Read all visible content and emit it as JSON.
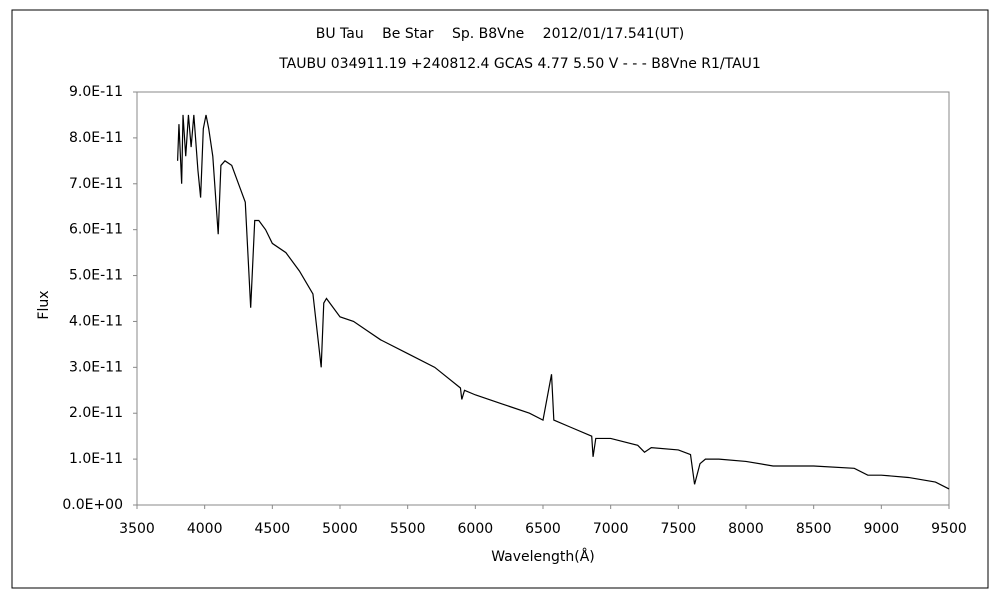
{
  "chart_data": {
    "type": "line",
    "title": "BU Tau　 Be Star　 Sp. B8Vne　 2012/01/17.541(UT)",
    "subtitle": "TAUBU 034911.19 +240812.4 GCAS 4.77 5.50 V - - - B8Vne R1/TAU1",
    "x_label": "Wavelength(Å)",
    "y_label": "Flux",
    "x": [
      3800,
      3810,
      3830,
      3840,
      3860,
      3880,
      3900,
      3920,
      3950,
      3970,
      3990,
      4010,
      4030,
      4060,
      4100,
      4120,
      4150,
      4200,
      4250,
      4300,
      4340,
      4370,
      4400,
      4450,
      4500,
      4600,
      4700,
      4800,
      4861,
      4880,
      4900,
      5000,
      5100,
      5200,
      5300,
      5500,
      5700,
      5890,
      5900,
      5920,
      6000,
      6200,
      6400,
      6500,
      6563,
      6580,
      6700,
      6860,
      6870,
      6890,
      7000,
      7200,
      7250,
      7300,
      7500,
      7590,
      7620,
      7660,
      7700,
      7800,
      8000,
      8200,
      8500,
      8800,
      8900,
      9000,
      9200,
      9400,
      9500
    ],
    "series": [
      {
        "color": "#000000",
        "values": [
          7.5e-11,
          8.3e-11,
          7e-11,
          8.5e-11,
          7.6e-11,
          8.5e-11,
          7.8e-11,
          8.5e-11,
          7.3e-11,
          6.7e-11,
          8.2e-11,
          8.5e-11,
          8.2e-11,
          7.6e-11,
          5.9e-11,
          7.4e-11,
          7.5e-11,
          7.4e-11,
          7e-11,
          6.6e-11,
          4.3e-11,
          6.2e-11,
          6.2e-11,
          6e-11,
          5.7e-11,
          5.5e-11,
          5.1e-11,
          4.6e-11,
          3e-11,
          4.4e-11,
          4.5e-11,
          4.1e-11,
          4e-11,
          3.8e-11,
          3.6e-11,
          3.3e-11,
          3e-11,
          2.55e-11,
          2.3e-11,
          2.5e-11,
          2.4e-11,
          2.2e-11,
          2e-11,
          1.85e-11,
          2.85e-11,
          1.85e-11,
          1.7e-11,
          1.5e-11,
          1.05e-11,
          1.45e-11,
          1.45e-11,
          1.3e-11,
          1.15e-11,
          1.25e-11,
          1.2e-11,
          1.1e-11,
          4.5e-12,
          9e-12,
          1e-11,
          1e-11,
          9.5e-12,
          8.5e-12,
          8.5e-12,
          8e-12,
          6.5e-12,
          6.5e-12,
          6e-12,
          5e-12,
          3.5e-12
        ]
      }
    ],
    "xlim": [
      3500,
      9500
    ],
    "xticks": [
      3500,
      4000,
      4500,
      5000,
      5500,
      6000,
      6500,
      7000,
      7500,
      8000,
      8500,
      9000,
      9500
    ],
    "ylim": [
      0,
      9e-11
    ],
    "yticks": [
      {
        "value": 0,
        "label": "0.0E+00"
      },
      {
        "value": 1e-11,
        "label": "1.0E-11"
      },
      {
        "value": 2e-11,
        "label": "2.0E-11"
      },
      {
        "value": 3e-11,
        "label": "3.0E-11"
      },
      {
        "value": 4e-11,
        "label": "4.0E-11"
      },
      {
        "value": 5e-11,
        "label": "5.0E-11"
      },
      {
        "value": 6e-11,
        "label": "6.0E-11"
      },
      {
        "value": 7e-11,
        "label": "7.0E-11"
      },
      {
        "value": 8e-11,
        "label": "8.0E-11"
      },
      {
        "value": 9e-11,
        "label": "9.0E-11"
      }
    ]
  }
}
